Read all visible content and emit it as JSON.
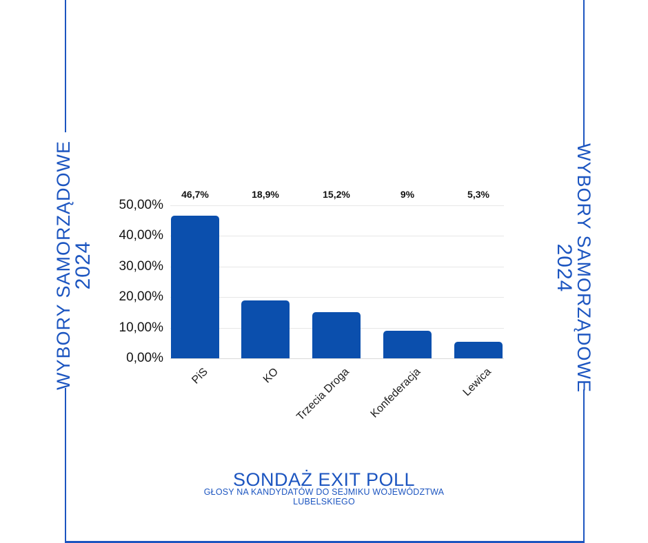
{
  "page": {
    "side_left": {
      "line1": "WYBORY SAMORZĄDOWE",
      "line2": "2024"
    },
    "side_right": {
      "line1": "WYBORY SAMORZĄDOWE",
      "line2": "2024"
    },
    "title": "SONDAŻ EXIT POLL",
    "subtitle": "GŁOSY NA KANDYDATÓW DO SEJMIKU WOJEWÓDZTWA LUBELSKIEGO"
  },
  "colors": {
    "accent_blue": "#1c55c0",
    "bar_blue": "#0b4fad",
    "grid_line": "#e7e7e7",
    "grid_baseline": "#d9d9d9",
    "axis_text": "#141414",
    "background": "#ffffff"
  },
  "chart_data": {
    "type": "bar",
    "title": "SONDAŻ EXIT POLL",
    "subtitle": "GŁOSY NA KANDYDATÓW DO SEJMIKU WOJEWÓDZTWA LUBELSKIEGO",
    "categories": [
      "PiS",
      "KO",
      "Trzecia Droga",
      "Konfederacja",
      "Lewica"
    ],
    "values": [
      46.7,
      18.9,
      15.2,
      9,
      5.3
    ],
    "value_labels": [
      "46,7%",
      "18,9%",
      "15,2%",
      "9%",
      "5,3%"
    ],
    "y_ticks": [
      "50,00%",
      "40,00%",
      "30,00%",
      "20,00%",
      "10,00%",
      "0,00%"
    ],
    "ylim": [
      0,
      50
    ],
    "grid": true,
    "legend": "none",
    "xlabel": "",
    "ylabel": "",
    "bar_color": "#0b4fad",
    "category_label_rotation_deg": -45
  }
}
